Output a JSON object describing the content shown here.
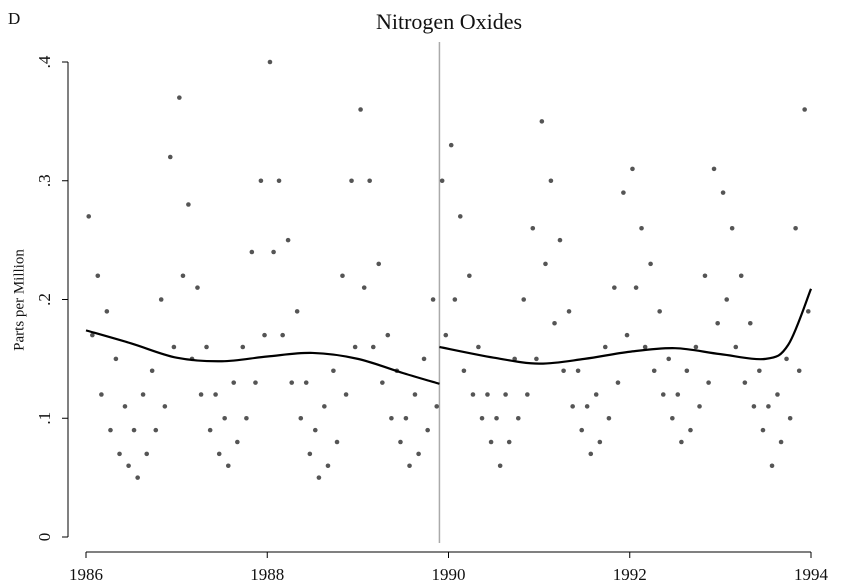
{
  "chart_data": {
    "type": "scatter",
    "panel": "D",
    "title": "Nitrogen Oxides",
    "y_label": "Parts per Million",
    "x": [
      1986.03,
      1986.07,
      1986.13,
      1986.17,
      1986.23,
      1986.27,
      1986.33,
      1986.37,
      1986.43,
      1986.47,
      1986.53,
      1986.57,
      1986.63,
      1986.67,
      1986.73,
      1986.77,
      1986.83,
      1986.87,
      1986.93,
      1986.97,
      1987.03,
      1987.07,
      1987.13,
      1987.17,
      1987.23,
      1987.27,
      1987.33,
      1987.37,
      1987.43,
      1987.47,
      1987.53,
      1987.57,
      1987.63,
      1987.67,
      1987.73,
      1987.77,
      1987.83,
      1987.87,
      1987.93,
      1987.97,
      1988.03,
      1988.07,
      1988.13,
      1988.17,
      1988.23,
      1988.27,
      1988.33,
      1988.37,
      1988.43,
      1988.47,
      1988.53,
      1988.57,
      1988.63,
      1988.67,
      1988.73,
      1988.77,
      1988.83,
      1988.87,
      1988.93,
      1988.97,
      1989.03,
      1989.07,
      1989.13,
      1989.17,
      1989.23,
      1989.27,
      1989.33,
      1989.37,
      1989.43,
      1989.47,
      1989.53,
      1989.57,
      1989.63,
      1989.67,
      1989.73,
      1989.77,
      1989.83,
      1989.87,
      1989.93,
      1989.97,
      1990.03,
      1990.07,
      1990.13,
      1990.17,
      1990.23,
      1990.27,
      1990.33,
      1990.37,
      1990.43,
      1990.47,
      1990.53,
      1990.57,
      1990.63,
      1990.67,
      1990.73,
      1990.77,
      1990.83,
      1990.87,
      1990.93,
      1990.97,
      1991.03,
      1991.07,
      1991.13,
      1991.17,
      1991.23,
      1991.27,
      1991.33,
      1991.37,
      1991.43,
      1991.47,
      1991.53,
      1991.57,
      1991.63,
      1991.67,
      1991.73,
      1991.77,
      1991.83,
      1991.87,
      1991.93,
      1991.97,
      1992.03,
      1992.07,
      1992.13,
      1992.17,
      1992.23,
      1992.27,
      1992.33,
      1992.37,
      1992.43,
      1992.47,
      1992.53,
      1992.57,
      1992.63,
      1992.67,
      1992.73,
      1992.77,
      1992.83,
      1992.87,
      1992.93,
      1992.97,
      1993.03,
      1993.07,
      1993.13,
      1993.17,
      1993.23,
      1993.27,
      1993.33,
      1993.37,
      1993.43,
      1993.47,
      1993.53,
      1993.57,
      1993.63,
      1993.67,
      1993.73,
      1993.77,
      1993.83,
      1993.87,
      1993.93,
      1993.97
    ],
    "y": [
      0.27,
      0.17,
      0.22,
      0.12,
      0.19,
      0.09,
      0.15,
      0.07,
      0.11,
      0.06,
      0.09,
      0.05,
      0.12,
      0.07,
      0.14,
      0.09,
      0.2,
      0.11,
      0.32,
      0.16,
      0.37,
      0.22,
      0.28,
      0.15,
      0.21,
      0.12,
      0.16,
      0.09,
      0.12,
      0.07,
      0.1,
      0.06,
      0.13,
      0.08,
      0.16,
      0.1,
      0.24,
      0.13,
      0.3,
      0.17,
      0.4,
      0.24,
      0.3,
      0.17,
      0.25,
      0.13,
      0.19,
      0.1,
      0.13,
      0.07,
      0.09,
      0.05,
      0.11,
      0.06,
      0.14,
      0.08,
      0.22,
      0.12,
      0.3,
      0.16,
      0.36,
      0.21,
      0.3,
      0.16,
      0.23,
      0.13,
      0.17,
      0.1,
      0.14,
      0.08,
      0.1,
      0.06,
      0.12,
      0.07,
      0.15,
      0.09,
      0.2,
      0.11,
      0.3,
      0.17,
      0.33,
      0.2,
      0.27,
      0.14,
      0.22,
      0.12,
      0.16,
      0.1,
      0.12,
      0.08,
      0.1,
      0.06,
      0.12,
      0.08,
      0.15,
      0.1,
      0.2,
      0.12,
      0.26,
      0.15,
      0.35,
      0.23,
      0.3,
      0.18,
      0.25,
      0.14,
      0.19,
      0.11,
      0.14,
      0.09,
      0.11,
      0.07,
      0.12,
      0.08,
      0.16,
      0.1,
      0.21,
      0.13,
      0.29,
      0.17,
      0.31,
      0.21,
      0.26,
      0.16,
      0.23,
      0.14,
      0.19,
      0.12,
      0.15,
      0.1,
      0.12,
      0.08,
      0.14,
      0.09,
      0.16,
      0.11,
      0.22,
      0.13,
      0.31,
      0.18,
      0.29,
      0.2,
      0.26,
      0.16,
      0.22,
      0.13,
      0.18,
      0.11,
      0.14,
      0.09,
      0.11,
      0.06,
      0.12,
      0.08,
      0.15,
      0.1,
      0.26,
      0.14,
      0.36,
      0.19
    ],
    "color": "#555555",
    "fits": [
      {
        "x": [
          1986,
          1986.5,
          1987,
          1987.5,
          1988,
          1988.5,
          1989,
          1989.5,
          1989.9
        ],
        "values": [
          0.174,
          0.163,
          0.151,
          0.148,
          0.152,
          0.155,
          0.15,
          0.138,
          0.129
        ],
        "color": "#000000"
      },
      {
        "x": [
          1989.9,
          1990.5,
          1991,
          1991.5,
          1992,
          1992.5,
          1993,
          1993.5,
          1993.75,
          1994
        ],
        "values": [
          0.16,
          0.151,
          0.146,
          0.15,
          0.156,
          0.159,
          0.154,
          0.15,
          0.162,
          0.209
        ],
        "color": "#000000"
      }
    ],
    "vline": 1989.9,
    "xlim": [
      1986,
      1994
    ],
    "ylim": [
      0,
      0.4
    ],
    "xticks": [
      1986,
      1988,
      1990,
      1992,
      1994
    ],
    "yticks": [
      0,
      {
        "value": 0.1,
        "label": ".1"
      },
      {
        "value": 0.2,
        "label": ".2"
      },
      {
        "value": 0.3,
        "label": ".3"
      },
      {
        "value": 0.4,
        "label": ".4"
      }
    ]
  }
}
